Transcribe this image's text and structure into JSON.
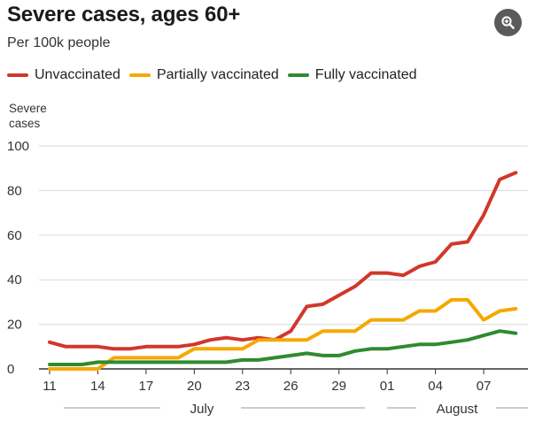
{
  "title": "Severe cases, ages 60+",
  "subtitle": "Per 100k people",
  "zoom_icon": "magnifier-plus-icon",
  "legend": [
    {
      "label": "Unvaccinated",
      "color": "#d1372b"
    },
    {
      "label": "Partially vaccinated",
      "color": "#f5a800"
    },
    {
      "label": "Fully vaccinated",
      "color": "#2e8b2e"
    }
  ],
  "chart_data": {
    "type": "line",
    "ylabel": "Severe cases",
    "ylim": [
      0,
      100
    ],
    "yticks": [
      0,
      20,
      40,
      60,
      80,
      100
    ],
    "x": [
      11,
      12,
      13,
      14,
      15,
      16,
      17,
      18,
      19,
      20,
      21,
      22,
      23,
      24,
      25,
      26,
      27,
      28,
      29,
      30,
      31,
      1,
      2,
      3,
      4,
      5,
      6,
      7,
      8,
      9
    ],
    "xticks": [
      "11",
      "14",
      "17",
      "20",
      "23",
      "26",
      "29",
      "01",
      "04",
      "07"
    ],
    "months": [
      "July",
      "August"
    ],
    "grid": true,
    "legend_position": "top",
    "series": [
      {
        "name": "Unvaccinated",
        "color": "#d1372b",
        "values": [
          12,
          10,
          10,
          10,
          9,
          9,
          10,
          10,
          10,
          11,
          13,
          14,
          13,
          14,
          13,
          17,
          28,
          29,
          33,
          37,
          43,
          43,
          42,
          46,
          48,
          56,
          57,
          69,
          85,
          88
        ]
      },
      {
        "name": "Partially vaccinated",
        "color": "#f5a800",
        "values": [
          0,
          0,
          0,
          0,
          5,
          5,
          5,
          5,
          5,
          9,
          9,
          9,
          9,
          13,
          13,
          13,
          13,
          17,
          17,
          17,
          22,
          22,
          22,
          26,
          26,
          31,
          31,
          22,
          26,
          27
        ]
      },
      {
        "name": "Fully vaccinated",
        "color": "#2e8b2e",
        "values": [
          2,
          2,
          2,
          3,
          3,
          3,
          3,
          3,
          3,
          3,
          3,
          3,
          4,
          4,
          5,
          6,
          7,
          6,
          6,
          8,
          9,
          9,
          10,
          11,
          11,
          12,
          13,
          15,
          17,
          16
        ]
      }
    ]
  }
}
